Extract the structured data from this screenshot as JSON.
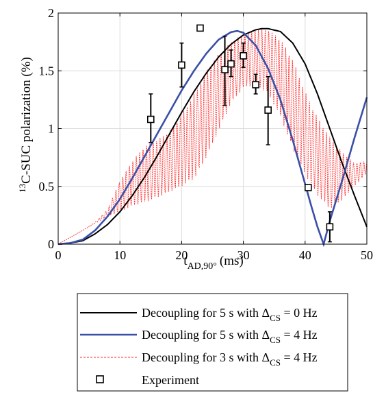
{
  "chart_data": {
    "type": "line",
    "xlabel": {
      "main": "t",
      "sub": "AD,90°",
      "unit": "(ms)"
    },
    "ylabel": {
      "sup": "13",
      "main": "C-SUC polarization (%)"
    },
    "xlim": [
      0,
      50
    ],
    "ylim": [
      0,
      2
    ],
    "xticks": [
      0,
      10,
      20,
      30,
      40,
      50
    ],
    "yticks": [
      0,
      0.5,
      1,
      1.5,
      2
    ],
    "xtick_labels": [
      "0",
      "10",
      "20",
      "30",
      "40",
      "50"
    ],
    "ytick_labels": [
      "0",
      "0.5",
      "1",
      "1.5",
      "2"
    ],
    "grid": true,
    "legend_position": "below",
    "series": [
      {
        "name": {
          "pre": "Decoupling for 5 s with Δ",
          "sub": "CS",
          "post": " = 0 Hz"
        },
        "style": "solid",
        "color": "#000000",
        "x": [
          0,
          2,
          4,
          6,
          8,
          10,
          12,
          14,
          16,
          18,
          20,
          22,
          24,
          26,
          28,
          30,
          32,
          33,
          34,
          36,
          38,
          40,
          42,
          44,
          46,
          48,
          50
        ],
        "y": [
          0,
          0.01,
          0.03,
          0.09,
          0.17,
          0.28,
          0.42,
          0.58,
          0.76,
          0.95,
          1.14,
          1.32,
          1.48,
          1.62,
          1.73,
          1.81,
          1.855,
          1.865,
          1.865,
          1.84,
          1.74,
          1.56,
          1.3,
          1.0,
          0.7,
          0.42,
          0.15
        ]
      },
      {
        "name": {
          "pre": "Decoupling for 5 s with Δ",
          "sub": "CS",
          "post": " = 4 Hz"
        },
        "style": "solid",
        "color": "#3a4fa8",
        "x": [
          0,
          2,
          4,
          6,
          8,
          10,
          12,
          14,
          16,
          18,
          20,
          22,
          24,
          26,
          28,
          29,
          30,
          32,
          34,
          36,
          38,
          40,
          41,
          42,
          43,
          44,
          46,
          48,
          50
        ],
        "y": [
          0,
          0.01,
          0.04,
          0.12,
          0.24,
          0.39,
          0.57,
          0.76,
          0.95,
          1.14,
          1.33,
          1.5,
          1.65,
          1.77,
          1.835,
          1.845,
          1.83,
          1.72,
          1.52,
          1.25,
          0.9,
          0.52,
          0.33,
          0.15,
          0.0,
          0.2,
          0.55,
          0.92,
          1.27
        ]
      },
      {
        "name": {
          "pre": "Decoupling for 3 s with Δ",
          "sub": "CS",
          "post": " = 4 Hz"
        },
        "style": "dotted",
        "color": "#ff2a2a",
        "x": [
          0,
          2,
          4,
          6,
          8,
          10,
          12,
          14,
          16,
          18,
          20,
          22,
          24,
          26,
          28,
          30,
          32,
          34,
          36,
          38,
          40,
          42,
          44,
          46,
          48,
          50
        ],
        "y_upper": [
          0.0,
          0.06,
          0.12,
          0.19,
          0.3,
          0.55,
          0.72,
          0.85,
          0.9,
          0.98,
          1.12,
          1.3,
          1.5,
          1.65,
          1.75,
          1.82,
          1.86,
          1.86,
          1.78,
          1.6,
          1.32,
          1.1,
          0.93,
          0.8,
          0.7,
          0.72
        ],
        "y_lower": [
          0.0,
          0.06,
          0.12,
          0.18,
          0.24,
          0.28,
          0.33,
          0.36,
          0.4,
          0.45,
          0.5,
          0.56,
          0.75,
          0.98,
          1.22,
          1.35,
          1.38,
          1.3,
          1.1,
          0.82,
          0.6,
          0.42,
          0.3,
          0.38,
          0.5,
          0.62
        ]
      },
      {
        "name": {
          "pre": "Experiment",
          "sub": "",
          "post": ""
        },
        "style": "markers",
        "color": "#000000",
        "points": [
          {
            "x": 15,
            "y": 1.08,
            "err_low": 0.88,
            "err_high": 1.3
          },
          {
            "x": 20,
            "y": 1.55,
            "err_low": 1.36,
            "err_high": 1.74
          },
          {
            "x": 23,
            "y": 1.87,
            "err_low": 1.87,
            "err_high": 1.87
          },
          {
            "x": 27,
            "y": 1.51,
            "err_low": 1.2,
            "err_high": 1.8
          },
          {
            "x": 28,
            "y": 1.56,
            "err_low": 1.45,
            "err_high": 1.68
          },
          {
            "x": 30,
            "y": 1.63,
            "err_low": 1.53,
            "err_high": 1.74
          },
          {
            "x": 32,
            "y": 1.38,
            "err_low": 1.3,
            "err_high": 1.47
          },
          {
            "x": 34,
            "y": 1.16,
            "err_low": 0.86,
            "err_high": 1.45
          },
          {
            "x": 40.5,
            "y": 0.49,
            "err_low": 0.49,
            "err_high": 0.49
          },
          {
            "x": 44,
            "y": 0.15,
            "err_low": 0.02,
            "err_high": 0.28
          }
        ]
      }
    ]
  }
}
